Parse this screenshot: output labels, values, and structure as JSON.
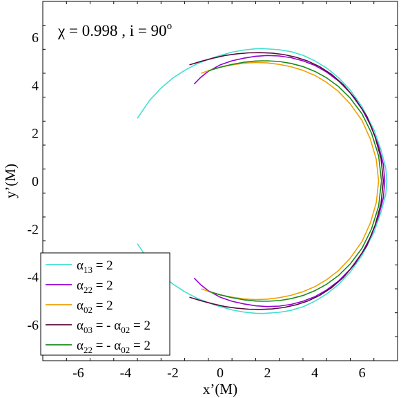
{
  "chart_data": {
    "type": "line",
    "annotation": {
      "chi_symbol": "χ",
      "chi_value": " = 0.998 , i = 90",
      "degree": "o"
    },
    "xlabel": "x’(M)",
    "ylabel": "y’(M)",
    "xlim": [
      -7.5,
      7.5
    ],
    "ylim": [
      -7.5,
      7.5
    ],
    "xticks": [
      -6,
      -4,
      -2,
      0,
      2,
      4,
      6
    ],
    "yticks": [
      -6,
      -4,
      -2,
      0,
      2,
      4,
      6
    ],
    "legend_position": "bottom-left",
    "series": [
      {
        "label": {
          "base": "α",
          "sub": "13",
          "rest": " = 2"
        },
        "color": "#40e0d0",
        "points": [
          [
            -3.5,
            2.62
          ],
          [
            -3.0,
            3.35
          ],
          [
            -2.5,
            3.88
          ],
          [
            -2.0,
            4.3
          ],
          [
            -1.5,
            4.62
          ],
          [
            -1.0,
            4.88
          ],
          [
            -0.5,
            5.08
          ],
          [
            0.0,
            5.24
          ],
          [
            0.5,
            5.38
          ],
          [
            1.0,
            5.47
          ],
          [
            1.5,
            5.52
          ],
          [
            1.8,
            5.53
          ],
          [
            2.5,
            5.48
          ],
          [
            3.0,
            5.4
          ],
          [
            3.5,
            5.25
          ],
          [
            4.0,
            5.02
          ],
          [
            4.5,
            4.72
          ],
          [
            5.0,
            4.32
          ],
          [
            5.5,
            3.8
          ],
          [
            6.0,
            3.1
          ],
          [
            6.5,
            2.15
          ],
          [
            6.8,
            1.3
          ],
          [
            7.0,
            0.55
          ],
          [
            7.05,
            0.0
          ],
          [
            7.0,
            -0.55
          ],
          [
            6.8,
            -1.3
          ],
          [
            6.5,
            -2.15
          ],
          [
            6.0,
            -3.1
          ],
          [
            5.5,
            -3.8
          ],
          [
            5.0,
            -4.32
          ],
          [
            4.5,
            -4.72
          ],
          [
            4.0,
            -5.02
          ],
          [
            3.5,
            -5.25
          ],
          [
            3.0,
            -5.4
          ],
          [
            2.5,
            -5.48
          ],
          [
            1.8,
            -5.53
          ],
          [
            1.5,
            -5.52
          ],
          [
            1.0,
            -5.47
          ],
          [
            0.5,
            -5.38
          ],
          [
            0.0,
            -5.24
          ],
          [
            -0.5,
            -5.08
          ],
          [
            -1.0,
            -4.88
          ],
          [
            -1.5,
            -4.62
          ],
          [
            -2.0,
            -4.3
          ],
          [
            -2.5,
            -3.88
          ],
          [
            -3.0,
            -3.35
          ],
          [
            -3.5,
            -2.62
          ]
        ]
      },
      {
        "label": {
          "base": "α",
          "sub": "22",
          "rest": " = 2"
        },
        "color": "#9400d3",
        "points": [
          [
            -1.1,
            4.05
          ],
          [
            -0.8,
            4.35
          ],
          [
            -0.5,
            4.58
          ],
          [
            0.0,
            4.85
          ],
          [
            0.5,
            5.02
          ],
          [
            1.0,
            5.13
          ],
          [
            1.5,
            5.21
          ],
          [
            2.0,
            5.24
          ],
          [
            2.5,
            5.22
          ],
          [
            3.0,
            5.15
          ],
          [
            3.5,
            5.02
          ],
          [
            4.0,
            4.83
          ],
          [
            4.5,
            4.55
          ],
          [
            5.0,
            4.18
          ],
          [
            5.5,
            3.68
          ],
          [
            6.0,
            3.0
          ],
          [
            6.4,
            2.25
          ],
          [
            6.7,
            1.45
          ],
          [
            6.9,
            0.7
          ],
          [
            6.96,
            0.0
          ],
          [
            6.9,
            -0.7
          ],
          [
            6.7,
            -1.45
          ],
          [
            6.4,
            -2.25
          ],
          [
            6.0,
            -3.0
          ],
          [
            5.5,
            -3.68
          ],
          [
            5.0,
            -4.18
          ],
          [
            4.5,
            -4.55
          ],
          [
            4.0,
            -4.83
          ],
          [
            3.5,
            -5.02
          ],
          [
            3.0,
            -5.15
          ],
          [
            2.5,
            -5.22
          ],
          [
            2.0,
            -5.24
          ],
          [
            1.5,
            -5.21
          ],
          [
            1.0,
            -5.13
          ],
          [
            0.5,
            -5.02
          ],
          [
            0.0,
            -4.85
          ],
          [
            -0.5,
            -4.58
          ],
          [
            -0.8,
            -4.35
          ],
          [
            -1.1,
            -4.05
          ]
        ]
      },
      {
        "label": {
          "base": "α",
          "sub": "02",
          "rest": " = 2"
        },
        "color": "#f0a000",
        "points": [
          [
            -0.8,
            4.5
          ],
          [
            -0.4,
            4.64
          ],
          [
            0.0,
            4.75
          ],
          [
            0.5,
            4.85
          ],
          [
            1.0,
            4.92
          ],
          [
            1.5,
            4.95
          ],
          [
            2.0,
            4.93
          ],
          [
            2.5,
            4.87
          ],
          [
            3.0,
            4.77
          ],
          [
            3.5,
            4.62
          ],
          [
            4.0,
            4.41
          ],
          [
            4.5,
            4.12
          ],
          [
            5.0,
            3.74
          ],
          [
            5.5,
            3.22
          ],
          [
            6.0,
            2.52
          ],
          [
            6.35,
            1.75
          ],
          [
            6.6,
            0.9
          ],
          [
            6.7,
            0.0
          ],
          [
            6.6,
            -0.9
          ],
          [
            6.35,
            -1.75
          ],
          [
            6.0,
            -2.52
          ],
          [
            5.5,
            -3.22
          ],
          [
            5.0,
            -3.74
          ],
          [
            4.5,
            -4.12
          ],
          [
            4.0,
            -4.41
          ],
          [
            3.5,
            -4.62
          ],
          [
            3.0,
            -4.77
          ],
          [
            2.5,
            -4.87
          ],
          [
            2.0,
            -4.93
          ],
          [
            1.5,
            -4.95
          ],
          [
            1.0,
            -4.92
          ],
          [
            0.5,
            -4.85
          ],
          [
            0.0,
            -4.75
          ],
          [
            -0.4,
            -4.64
          ],
          [
            -0.8,
            -4.5
          ]
        ]
      },
      {
        "label": {
          "base": "α",
          "sub": "03",
          "rest": " = - ",
          "base2": "α",
          "sub2": "02",
          "rest2": " = 2"
        },
        "color": "#5a0a3c",
        "points": [
          [
            -1.3,
            4.85
          ],
          [
            -0.8,
            5.0
          ],
          [
            -0.3,
            5.13
          ],
          [
            0.2,
            5.24
          ],
          [
            0.7,
            5.31
          ],
          [
            1.2,
            5.35
          ],
          [
            1.7,
            5.36
          ],
          [
            2.2,
            5.34
          ],
          [
            2.7,
            5.28
          ],
          [
            3.2,
            5.17
          ],
          [
            3.7,
            5.01
          ],
          [
            4.2,
            4.78
          ],
          [
            4.7,
            4.46
          ],
          [
            5.2,
            4.03
          ],
          [
            5.7,
            3.45
          ],
          [
            6.2,
            2.7
          ],
          [
            6.55,
            1.85
          ],
          [
            6.8,
            0.95
          ],
          [
            6.9,
            0.0
          ],
          [
            6.8,
            -0.95
          ],
          [
            6.55,
            -1.85
          ],
          [
            6.2,
            -2.7
          ],
          [
            5.7,
            -3.45
          ],
          [
            5.2,
            -4.03
          ],
          [
            4.7,
            -4.46
          ],
          [
            4.2,
            -4.78
          ],
          [
            3.7,
            -5.01
          ],
          [
            3.2,
            -5.17
          ],
          [
            2.7,
            -5.28
          ],
          [
            2.2,
            -5.34
          ],
          [
            1.7,
            -5.36
          ],
          [
            1.2,
            -5.35
          ],
          [
            0.7,
            -5.31
          ],
          [
            0.2,
            -5.24
          ],
          [
            -0.3,
            -5.13
          ],
          [
            -0.8,
            -5.0
          ],
          [
            -1.3,
            -4.85
          ]
        ]
      },
      {
        "label": {
          "base": "α",
          "sub": "22",
          "rest": " = - ",
          "base2": "α",
          "sub2": "02",
          "rest2": " = 2"
        },
        "color": "#1a8a1a",
        "points": [
          [
            -0.5,
            4.6
          ],
          [
            0.0,
            4.75
          ],
          [
            0.5,
            4.87
          ],
          [
            1.0,
            4.96
          ],
          [
            1.5,
            5.01
          ],
          [
            2.0,
            5.02
          ],
          [
            2.5,
            4.99
          ],
          [
            3.0,
            4.91
          ],
          [
            3.5,
            4.78
          ],
          [
            4.0,
            4.58
          ],
          [
            4.5,
            4.31
          ],
          [
            5.0,
            3.95
          ],
          [
            5.5,
            3.46
          ],
          [
            6.0,
            2.8
          ],
          [
            6.4,
            2.0
          ],
          [
            6.7,
            1.05
          ],
          [
            6.82,
            0.0
          ],
          [
            6.7,
            -1.05
          ],
          [
            6.4,
            -2.0
          ],
          [
            6.0,
            -2.8
          ],
          [
            5.5,
            -3.46
          ],
          [
            5.0,
            -3.95
          ],
          [
            4.5,
            -4.31
          ],
          [
            4.0,
            -4.58
          ],
          [
            3.5,
            -4.78
          ],
          [
            3.0,
            -4.91
          ],
          [
            2.5,
            -4.99
          ],
          [
            2.0,
            -5.02
          ],
          [
            1.5,
            -5.01
          ],
          [
            1.0,
            -4.96
          ],
          [
            0.5,
            -4.87
          ],
          [
            0.0,
            -4.75
          ],
          [
            -0.5,
            -4.6
          ]
        ]
      }
    ]
  }
}
